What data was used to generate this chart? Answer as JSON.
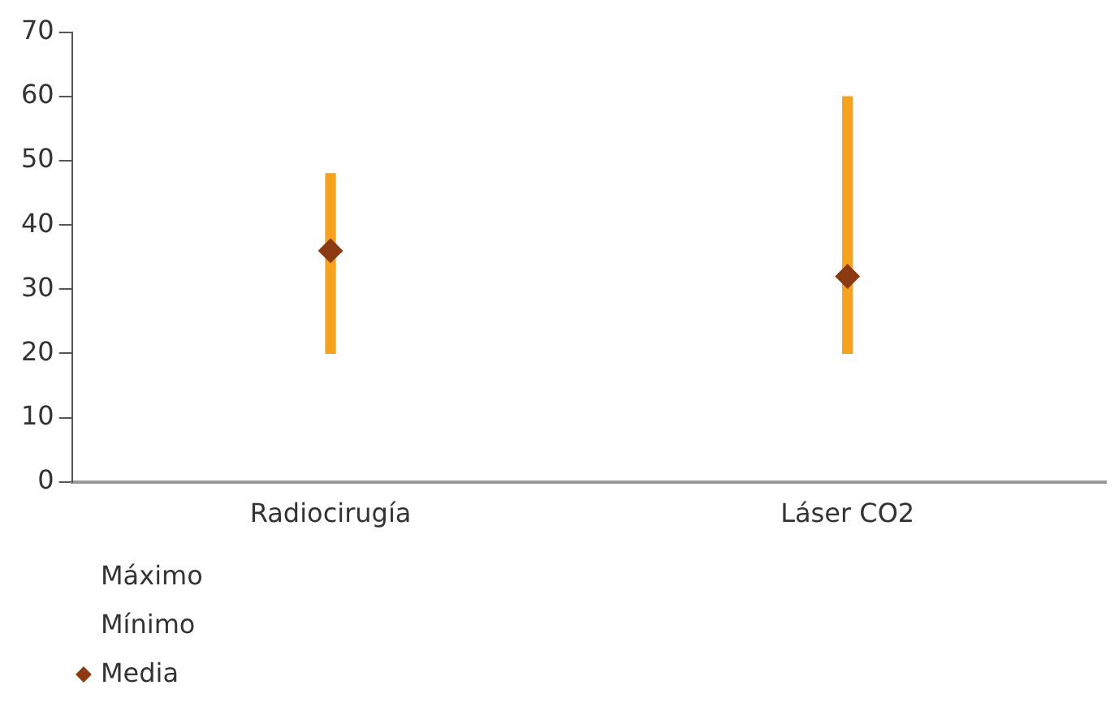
{
  "chart_data": {
    "type": "bar",
    "categories": [
      "Radiocirugía",
      "Láser CO2"
    ],
    "ylim": [
      0,
      70
    ],
    "yticks": [
      0,
      10,
      20,
      30,
      40,
      50,
      60,
      70
    ],
    "grid": false,
    "legend": "bottom left",
    "annotations": [
      "Máximo",
      "Mínimo"
    ],
    "series": [
      {
        "color": "#f5a21e",
        "base": [
          20,
          20
        ],
        "values": [
          28,
          40
        ]
      },
      {
        "type": "scatter",
        "name": "Media",
        "color": "#8b3a12",
        "marker": "diamond",
        "values": [
          36,
          32
        ]
      }
    ]
  }
}
